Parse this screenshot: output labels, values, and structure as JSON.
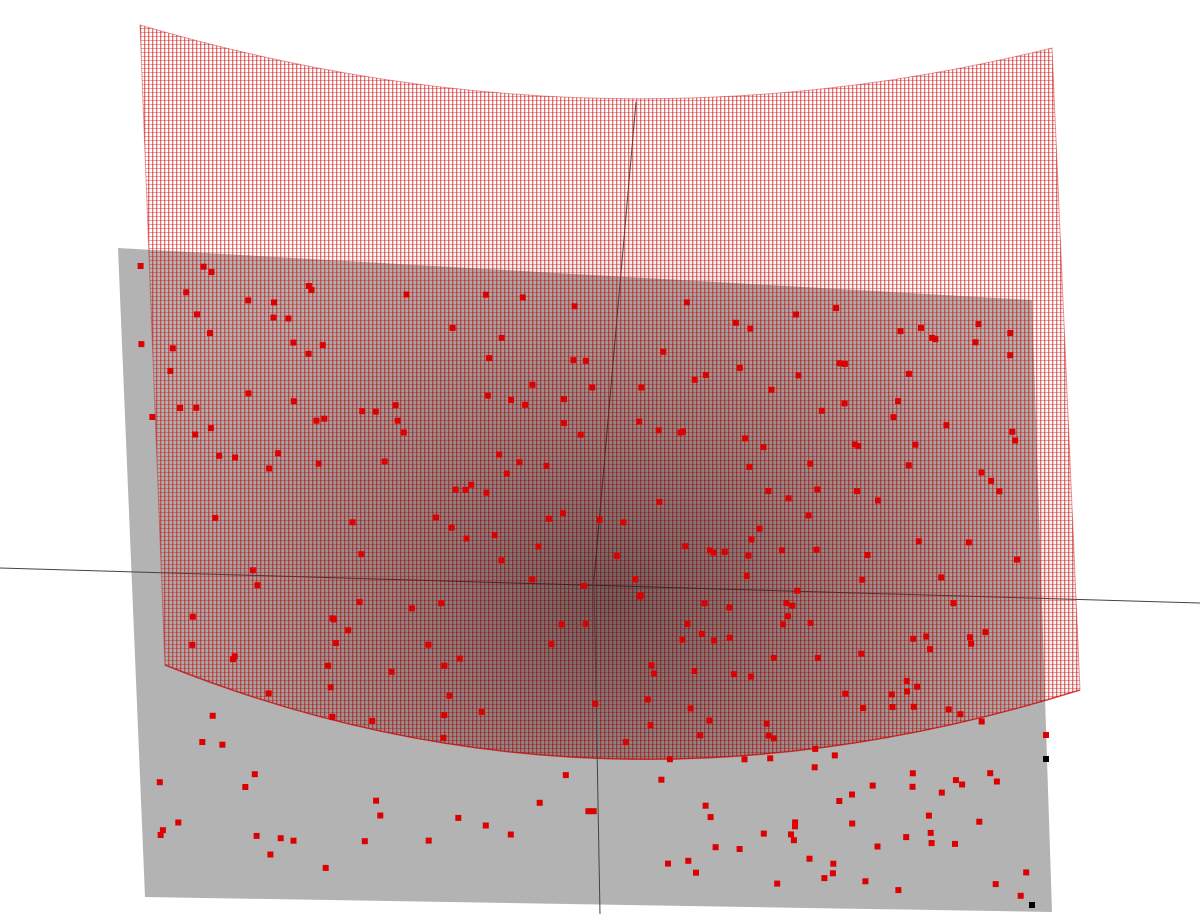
{
  "colors": {
    "background": "#ffffff",
    "plane": "#b3b3b3",
    "mesh": "#cc0000",
    "points": "#dd0000",
    "outlier_points": "#000000",
    "axes": "#444444"
  },
  "scene": {
    "surface": "paraboloid-mesh",
    "plane": "ground-plane",
    "axes_visible": true,
    "sample_points": 300
  }
}
